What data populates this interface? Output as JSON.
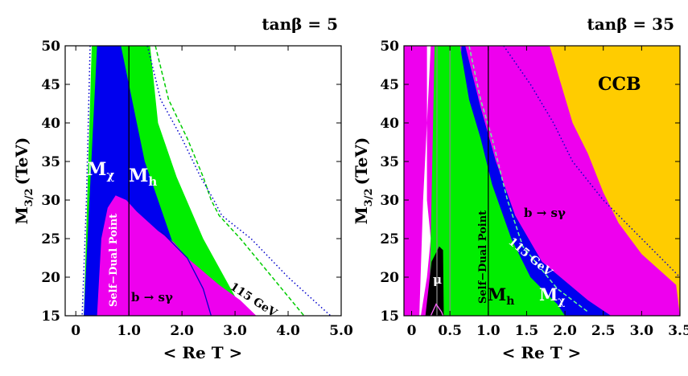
{
  "chart_data": [
    {
      "type": "area",
      "title": "tanβ = 5",
      "xlabel": "< Re T >",
      "ylabel": "M₃/₂ (TeV)",
      "ylabel_main": "M",
      "ylabel_sub": "3/2",
      "ylabel_unit": "(TeV)",
      "xlim": [
        -0.2,
        5.0
      ],
      "ylim": [
        15,
        50
      ],
      "xticks": [
        "0",
        "1.0",
        "2.0",
        "3.0",
        "4.0",
        "5.0"
      ],
      "xtick_values": [
        0,
        1,
        2,
        3,
        4,
        5
      ],
      "yticks": [
        "15",
        "20",
        "25",
        "30",
        "35",
        "40",
        "45",
        "50"
      ],
      "ytick_values": [
        15,
        20,
        25,
        30,
        35,
        40,
        45,
        50
      ],
      "colors": {
        "green": "#00ee00",
        "blue": "#0000ee",
        "magenta": "#ee00ee",
        "orange": "#ffcc00",
        "black": "#000000"
      },
      "regions": [
        {
          "name": "green",
          "points": [
            [
              0.3,
              50
            ],
            [
              1.4,
              50
            ],
            [
              1.55,
              40
            ],
            [
              1.9,
              33
            ],
            [
              2.4,
              25
            ],
            [
              3.2,
              15
            ],
            [
              0.15,
              15
            ]
          ]
        },
        {
          "name": "blue",
          "points": [
            [
              0.4,
              50
            ],
            [
              0.85,
              50
            ],
            [
              1.0,
              45
            ],
            [
              1.15,
              40
            ],
            [
              1.3,
              35
            ],
            [
              1.55,
              30
            ],
            [
              1.85,
              24
            ],
            [
              2.4,
              18.5
            ],
            [
              2.55,
              15
            ],
            [
              0.15,
              15
            ]
          ]
        },
        {
          "name": "magenta",
          "points": [
            [
              0.4,
              15
            ],
            [
              0.48,
              25
            ],
            [
              0.6,
              29
            ],
            [
              0.75,
              30.6
            ],
            [
              0.95,
              30
            ],
            [
              1.15,
              28.5
            ],
            [
              1.55,
              26
            ],
            [
              1.85,
              24.5
            ],
            [
              2.1,
              22.5
            ],
            [
              2.7,
              19
            ],
            [
              3.1,
              17
            ],
            [
              3.4,
              15
            ]
          ]
        }
      ],
      "lines": [
        {
          "name": "115 GeV",
          "style": "dashed",
          "color": "#00cc00",
          "points": [
            [
              1.5,
              50
            ],
            [
              1.75,
              43
            ],
            [
              2.1,
              38
            ],
            [
              2.4,
              33
            ],
            [
              2.55,
              30
            ],
            [
              2.7,
              28
            ],
            [
              3.1,
              25
            ],
            [
              3.7,
              20
            ],
            [
              4.3,
              15
            ]
          ]
        },
        {
          "name": "dotted",
          "style": "dotted",
          "color": "#0000cc",
          "points": [
            [
              1.35,
              50
            ],
            [
              1.6,
              43
            ],
            [
              2.0,
              38
            ],
            [
              2.35,
              33
            ],
            [
              2.6,
              30
            ],
            [
              2.75,
              28
            ],
            [
              3.3,
              25
            ],
            [
              4.0,
              20
            ],
            [
              4.8,
              15
            ]
          ]
        },
        {
          "name": "left-dotted",
          "style": "dotted",
          "color": "#0000cc",
          "points": [
            [
              0.27,
              50
            ],
            [
              0.2,
              30
            ],
            [
              0.12,
              15
            ]
          ]
        },
        {
          "name": "blue-inner",
          "style": "solid",
          "color": "#0000cc",
          "points": [
            [
              1.6,
              26
            ],
            [
              2.1,
              22.5
            ],
            [
              2.4,
              18.5
            ],
            [
              2.55,
              15
            ]
          ]
        },
        {
          "name": "self-dual",
          "style": "solid",
          "color": "#000000",
          "points": [
            [
              1.0,
              15
            ],
            [
              1.0,
              50
            ]
          ]
        }
      ],
      "annotations": [
        "Mχ",
        "Mh",
        "Self−Dual Point",
        "b → sγ",
        "115 GeV"
      ],
      "labels": {
        "mchi": "Mχ",
        "mchi_main": "M",
        "mchi_sub": "χ",
        "mh_main": "M",
        "mh_sub": "h",
        "self_dual": "Self−Dual Point",
        "bsg": "b →  sγ",
        "gev115": "115 GeV"
      }
    },
    {
      "type": "area",
      "title": "tanβ = 35",
      "xlabel": "< Re T >",
      "ylabel": "M₃/₂ (TeV)",
      "ylabel_main": "M",
      "ylabel_sub": "3/2",
      "ylabel_unit": "(TeV)",
      "xlim": [
        -0.1,
        3.5
      ],
      "ylim": [
        15,
        50
      ],
      "xticks": [
        "0",
        "0.5",
        "1.0",
        "1.5",
        "2.0",
        "2.5",
        "3.0",
        "3.5"
      ],
      "xtick_values": [
        0,
        0.5,
        1.0,
        1.5,
        2.0,
        2.5,
        3.0,
        3.5
      ],
      "yticks": [
        "15",
        "20",
        "25",
        "30",
        "35",
        "40",
        "45",
        "50"
      ],
      "ytick_values": [
        15,
        20,
        25,
        30,
        35,
        40,
        45,
        50
      ],
      "colors": {
        "green": "#00ee00",
        "blue": "#0000ee",
        "magenta": "#ee00ee",
        "orange": "#ffcc00",
        "black": "#000000",
        "white": "#ffffff"
      },
      "regions": [
        {
          "name": "magenta",
          "points": [
            [
              -0.1,
              50
            ],
            [
              3.5,
              50
            ],
            [
              3.5,
              15
            ],
            [
              -0.1,
              15
            ]
          ]
        },
        {
          "name": "orange",
          "points": [
            [
              1.8,
              50
            ],
            [
              3.5,
              50
            ],
            [
              3.5,
              15
            ],
            [
              3.45,
              19
            ],
            [
              3.0,
              23
            ],
            [
              2.7,
              27
            ],
            [
              2.5,
              31
            ],
            [
              2.3,
              36
            ],
            [
              2.1,
              40
            ],
            [
              1.95,
              45
            ]
          ]
        },
        {
          "name": "white",
          "points": [
            [
              0.2,
              50
            ],
            [
              0.25,
              50
            ],
            [
              0.2,
              40
            ],
            [
              0.2,
              30
            ],
            [
              0.25,
              25
            ],
            [
              0.2,
              20
            ],
            [
              0.12,
              15
            ],
            [
              0.1,
              15
            ],
            [
              0.15,
              30
            ],
            [
              0.2,
              40
            ]
          ]
        },
        {
          "name": "blue",
          "points": [
            [
              0.65,
              50
            ],
            [
              0.7,
              50
            ],
            [
              0.9,
              42
            ],
            [
              1.1,
              35
            ],
            [
              1.35,
              28
            ],
            [
              1.7,
              22
            ],
            [
              2.3,
              17
            ],
            [
              2.6,
              15
            ],
            [
              0.5,
              15
            ]
          ]
        },
        {
          "name": "green",
          "points": [
            [
              0.3,
              50
            ],
            [
              0.63,
              50
            ],
            [
              0.75,
              43
            ],
            [
              0.9,
              38
            ],
            [
              1.05,
              32
            ],
            [
              1.3,
              25
            ],
            [
              1.55,
              20
            ],
            [
              1.9,
              16.5
            ],
            [
              2.0,
              15
            ],
            [
              0.23,
              15
            ]
          ]
        },
        {
          "name": "black",
          "points": [
            [
              0.18,
              15
            ],
            [
              0.26,
              22
            ],
            [
              0.36,
              24
            ],
            [
              0.41,
              23.5
            ],
            [
              0.42,
              15
            ]
          ]
        }
      ],
      "lines": [
        {
          "name": "115 GeV",
          "style": "dashed",
          "color": "#66ff99",
          "points": [
            [
              0.75,
              50
            ],
            [
              0.9,
              43
            ],
            [
              1.05,
              38
            ],
            [
              1.25,
              30
            ],
            [
              1.45,
              24
            ],
            [
              1.9,
              18.5
            ],
            [
              2.3,
              15.5
            ]
          ]
        },
        {
          "name": "bsg-dotted",
          "style": "dotted",
          "color": "#0000cc",
          "points": [
            [
              1.2,
              50
            ],
            [
              1.55,
              45
            ],
            [
              1.85,
              40
            ],
            [
              2.1,
              35
            ],
            [
              2.5,
              30
            ],
            [
              3.0,
              25
            ],
            [
              3.5,
              20
            ]
          ]
        },
        {
          "name": "gray-1",
          "style": "solid",
          "color": "#888888",
          "points": [
            [
              0.33,
              15
            ],
            [
              0.33,
              50
            ]
          ]
        },
        {
          "name": "gray-2",
          "style": "solid",
          "color": "#888888",
          "points": [
            [
              0.5,
              15
            ],
            [
              0.5,
              50
            ]
          ]
        },
        {
          "name": "self-dual",
          "style": "solid",
          "color": "#000000",
          "points": [
            [
              1.0,
              15
            ],
            [
              1.0,
              50
            ]
          ]
        },
        {
          "name": "mu-line",
          "style": "solid",
          "color": "#ff66ff",
          "points": [
            [
              0.25,
              15
            ],
            [
              0.32,
              16.5
            ],
            [
              0.39,
              15.5
            ],
            [
              0.41,
              15
            ]
          ]
        }
      ],
      "annotations": [
        "CCB",
        "b → sγ",
        "115 GeV",
        "Self−Dual Point",
        "Mh",
        "Mχ",
        "μ"
      ],
      "labels": {
        "ccb": "CCB",
        "bsg": "b →  sγ",
        "gev115": "115 GeV",
        "self_dual": "Self−Dual Point",
        "mh_main": "M",
        "mh_sub": "h",
        "mchi_main": "M",
        "mchi_sub": "χ",
        "mu": "μ"
      }
    }
  ]
}
